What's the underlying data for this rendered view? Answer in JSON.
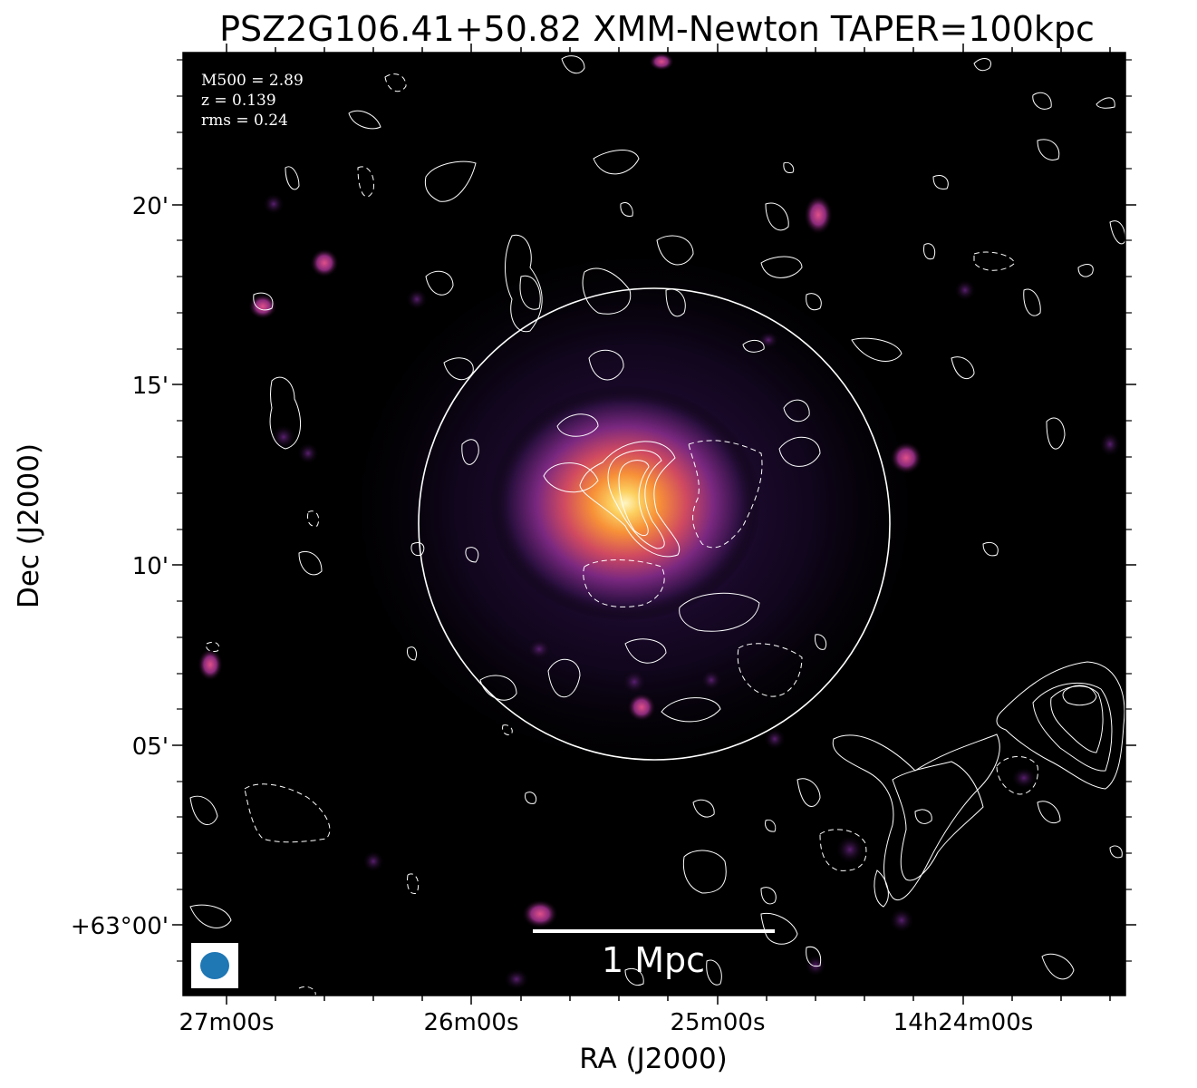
{
  "title": "PSZ2G106.41+50.82 XMM-Newton TAPER=100kpc",
  "info": {
    "m500": "M500 = 2.89",
    "z": "z = 0.139",
    "rms": "rms = 0.24"
  },
  "scale_bar": {
    "label": "1 Mpc"
  },
  "axes": {
    "xlabel": "RA (J2000)",
    "ylabel": "Dec (J2000)",
    "xticks": [
      "27m00s",
      "26m00s",
      "25m00s",
      "14h24m00s"
    ],
    "yticks": [
      "20'",
      "15'",
      "10'",
      "05'",
      "+63°00'"
    ]
  },
  "colors": {
    "background": "#000000",
    "contour": "#ffffff",
    "beam": "#1f77b4",
    "core": "#fff2b0"
  }
}
